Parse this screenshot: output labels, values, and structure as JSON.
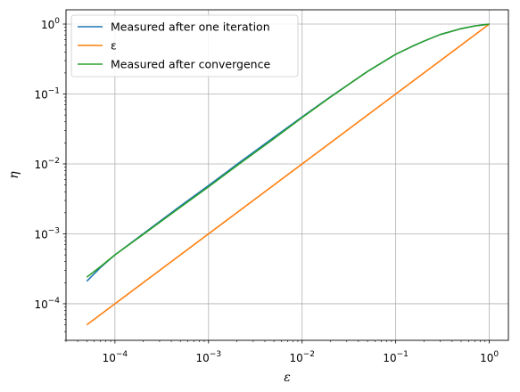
{
  "chart_data": {
    "type": "line",
    "xscale": "log",
    "yscale": "log",
    "xlim": [
      3e-05,
      1.6
    ],
    "ylim": [
      3e-05,
      1.6
    ],
    "xlabel": "ε",
    "ylabel": "η",
    "grid": true,
    "legend_position": "top-left",
    "x_ticks": [
      {
        "value": 0.0001,
        "label_base": "10",
        "label_exp": "−4"
      },
      {
        "value": 0.001,
        "label_base": "10",
        "label_exp": "−3"
      },
      {
        "value": 0.01,
        "label_base": "10",
        "label_exp": "−2"
      },
      {
        "value": 0.1,
        "label_base": "10",
        "label_exp": "−1"
      },
      {
        "value": 1,
        "label_base": "10",
        "label_exp": "0"
      }
    ],
    "y_ticks": [
      {
        "value": 0.0001,
        "label_base": "10",
        "label_exp": "−4"
      },
      {
        "value": 0.001,
        "label_base": "10",
        "label_exp": "−3"
      },
      {
        "value": 0.01,
        "label_base": "10",
        "label_exp": "−2"
      },
      {
        "value": 0.1,
        "label_base": "10",
        "label_exp": "−1"
      },
      {
        "value": 1,
        "label_base": "10",
        "label_exp": "0"
      }
    ],
    "series": [
      {
        "name": "Measured after one iteration",
        "color": "#1f77b4",
        "x": [
          5e-05,
          7e-05,
          0.0001,
          0.0002,
          0.0005,
          0.001,
          0.002,
          0.005,
          0.01,
          0.02,
          0.05,
          0.1,
          0.15,
          0.2,
          0.3,
          0.5,
          0.7,
          1.0
        ],
        "y": [
          0.00021,
          0.00033,
          0.0005,
          0.001,
          0.0025,
          0.0049,
          0.0098,
          0.024,
          0.047,
          0.091,
          0.21,
          0.37,
          0.48,
          0.57,
          0.71,
          0.86,
          0.94,
          1.0
        ]
      },
      {
        "name": "ε",
        "color": "#ff7f0e",
        "x": [
          5e-05,
          1.0
        ],
        "y": [
          5e-05,
          1.0
        ]
      },
      {
        "name": "Measured after convergence",
        "color": "#2ca02c",
        "x": [
          5e-05,
          7e-05,
          0.0001,
          0.0002,
          0.0005,
          0.001,
          0.002,
          0.005,
          0.01,
          0.02,
          0.05,
          0.1,
          0.15,
          0.2,
          0.3,
          0.5,
          0.7,
          1.0
        ],
        "y": [
          0.00024,
          0.00034,
          0.0005,
          0.00098,
          0.0024,
          0.0047,
          0.0094,
          0.023,
          0.046,
          0.09,
          0.21,
          0.37,
          0.48,
          0.57,
          0.71,
          0.86,
          0.94,
          1.0
        ]
      }
    ]
  }
}
